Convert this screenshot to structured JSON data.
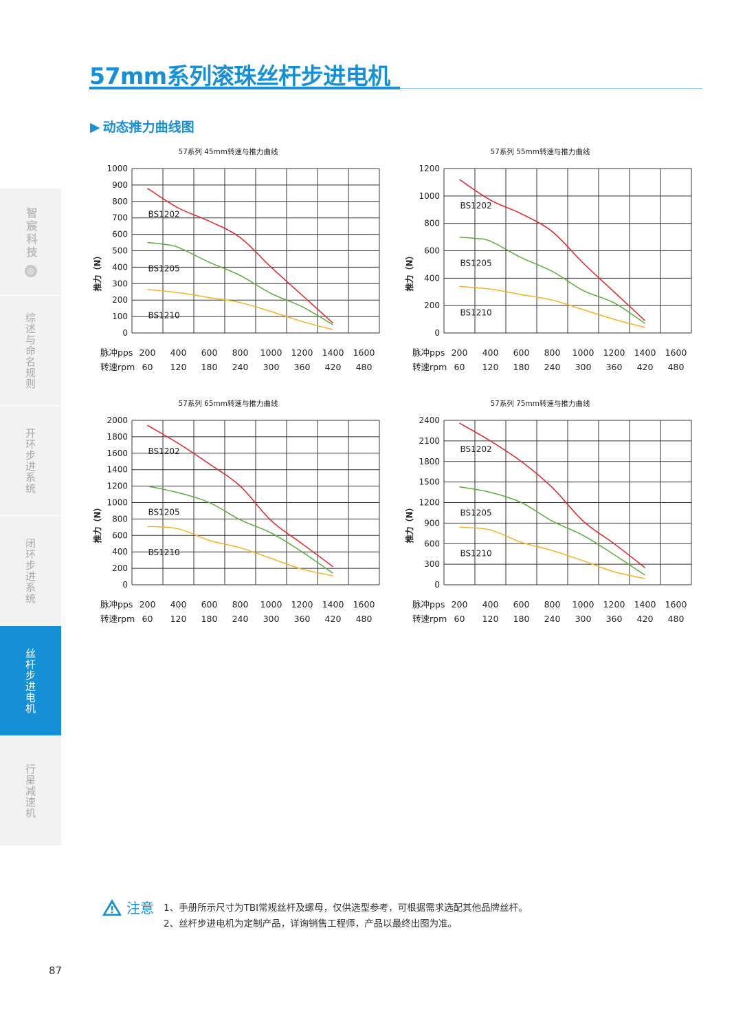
{
  "page": {
    "title": "57mm系列滚珠丝杆步进电机",
    "section_title": "动态推力曲线图",
    "section_marker": "▶",
    "page_number": "87"
  },
  "sidebar": {
    "logo_text": "智宸科技",
    "logo_mark": "◎",
    "tabs": [
      {
        "label": "综述与命名规则",
        "active": false
      },
      {
        "label": "开环步进系统",
        "active": false
      },
      {
        "label": "闭环步进系统",
        "active": false
      },
      {
        "label": "丝杆步进电机",
        "active": true
      },
      {
        "label": "行星减速机",
        "active": false
      }
    ]
  },
  "note": {
    "label": "注意",
    "lines": [
      "1、手册所示尺寸为TBI常规丝杆及螺母，仅供选型参考，可根据需求选配其他品牌丝杆。",
      "2、丝杆步进电机为定制产品，详询销售工程师，产品以最终出图为准。"
    ]
  },
  "colors": {
    "accent": "#1590d6",
    "BS1202": "#e3232a",
    "BS1205": "#5aae3a",
    "BS1210": "#f5b324"
  },
  "chart_data": [
    {
      "type": "line",
      "title": "57系列 45mm转速与推力曲线",
      "ylabel": "推力（N）",
      "x_row_labels": [
        "脉冲pps",
        "转速rpm"
      ],
      "x_pps": [
        200,
        400,
        600,
        800,
        1000,
        1200,
        1400,
        1600
      ],
      "x_rpm": [
        60,
        120,
        180,
        240,
        300,
        360,
        420,
        480
      ],
      "ylim": [
        0,
        1000
      ],
      "yticks": [
        0,
        100,
        200,
        300,
        400,
        500,
        600,
        700,
        800,
        900,
        1000
      ],
      "grid": true,
      "series": [
        {
          "name": "BS1202",
          "x": [
            200,
            400,
            600,
            800,
            1000,
            1200,
            1400
          ],
          "y": [
            880,
            760,
            680,
            580,
            400,
            230,
            60
          ]
        },
        {
          "name": "BS1205",
          "x": [
            200,
            300,
            400,
            600,
            800,
            1000,
            1200,
            1400
          ],
          "y": [
            550,
            540,
            520,
            430,
            350,
            240,
            160,
            50
          ]
        },
        {
          "name": "BS1210",
          "x": [
            200,
            400,
            600,
            800,
            1000,
            1200,
            1400
          ],
          "y": [
            265,
            245,
            215,
            185,
            130,
            70,
            20
          ]
        }
      ]
    },
    {
      "type": "line",
      "title": "57系列 55mm转速与推力曲线",
      "ylabel": "推力（N）",
      "x_row_labels": [
        "脉冲pps",
        "转速rpm"
      ],
      "x_pps": [
        200,
        400,
        600,
        800,
        1000,
        1200,
        1400,
        1600
      ],
      "x_rpm": [
        60,
        120,
        180,
        240,
        300,
        360,
        420,
        480
      ],
      "ylim": [
        0,
        1200
      ],
      "yticks": [
        0,
        200,
        400,
        600,
        800,
        1000,
        1200
      ],
      "grid": true,
      "series": [
        {
          "name": "BS1202",
          "x": [
            200,
            400,
            600,
            800,
            1000,
            1200,
            1400
          ],
          "y": [
            1120,
            970,
            870,
            740,
            510,
            300,
            90
          ]
        },
        {
          "name": "BS1205",
          "x": [
            200,
            300,
            400,
            600,
            800,
            1000,
            1200,
            1400
          ],
          "y": [
            700,
            690,
            670,
            550,
            450,
            310,
            220,
            70
          ]
        },
        {
          "name": "BS1210",
          "x": [
            200,
            400,
            600,
            800,
            1000,
            1200,
            1400
          ],
          "y": [
            340,
            320,
            280,
            240,
            170,
            100,
            40
          ]
        }
      ]
    },
    {
      "type": "line",
      "title": "57系列 65mm转速与推力曲线",
      "ylabel": "推力（N）",
      "x_row_labels": [
        "脉冲pps",
        "转速rpm"
      ],
      "x_pps": [
        200,
        400,
        600,
        800,
        1000,
        1200,
        1400,
        1600
      ],
      "x_rpm": [
        60,
        120,
        180,
        240,
        300,
        360,
        420,
        480
      ],
      "ylim": [
        0,
        2000
      ],
      "yticks": [
        0,
        200,
        400,
        600,
        800,
        1000,
        1200,
        1400,
        1600,
        1800,
        2000
      ],
      "grid": true,
      "series": [
        {
          "name": "BS1202",
          "x": [
            200,
            400,
            600,
            800,
            1000,
            1200,
            1400
          ],
          "y": [
            1940,
            1720,
            1470,
            1200,
            780,
            500,
            220
          ]
        },
        {
          "name": "BS1205",
          "x": [
            200,
            400,
            600,
            800,
            1000,
            1200,
            1400
          ],
          "y": [
            1200,
            1120,
            1000,
            790,
            630,
            400,
            140
          ]
        },
        {
          "name": "BS1210",
          "x": [
            200,
            400,
            600,
            800,
            1000,
            1200,
            1400
          ],
          "y": [
            710,
            680,
            540,
            450,
            320,
            190,
            110
          ]
        }
      ]
    },
    {
      "type": "line",
      "title": "57系列 75mm转速与推力曲线",
      "ylabel": "推力（N）",
      "x_row_labels": [
        "脉冲pps",
        "转速rpm"
      ],
      "x_pps": [
        200,
        400,
        600,
        800,
        1000,
        1200,
        1400,
        1600
      ],
      "x_rpm": [
        60,
        120,
        180,
        240,
        300,
        360,
        420,
        480
      ],
      "ylim": [
        0,
        2400
      ],
      "yticks": [
        0,
        300,
        600,
        900,
        1200,
        1500,
        1800,
        2100,
        2400
      ],
      "grid": true,
      "series": [
        {
          "name": "BS1202",
          "x": [
            200,
            400,
            600,
            800,
            1000,
            1200,
            1400
          ],
          "y": [
            2360,
            2100,
            1800,
            1420,
            930,
            600,
            250
          ]
        },
        {
          "name": "BS1205",
          "x": [
            200,
            400,
            600,
            800,
            1000,
            1200,
            1400
          ],
          "y": [
            1430,
            1350,
            1200,
            930,
            720,
            440,
            140
          ]
        },
        {
          "name": "BS1210",
          "x": [
            200,
            400,
            600,
            800,
            1000,
            1200,
            1400
          ],
          "y": [
            840,
            800,
            620,
            500,
            350,
            190,
            90
          ]
        }
      ]
    }
  ]
}
